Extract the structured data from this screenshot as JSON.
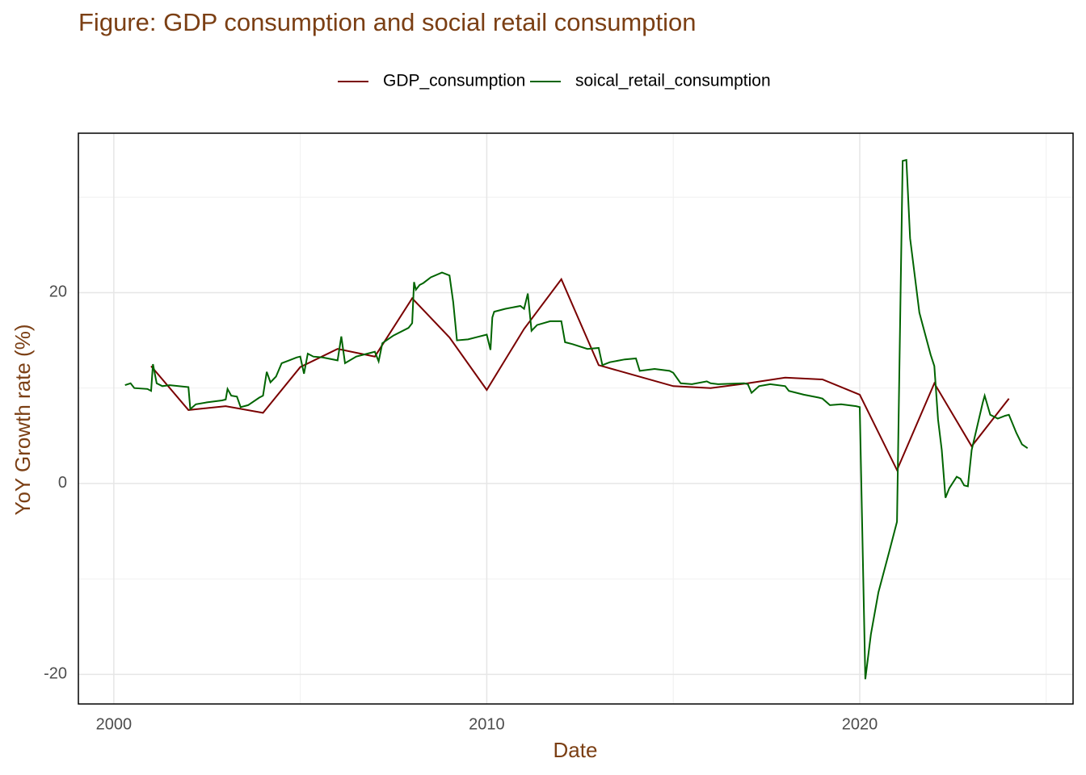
{
  "chart_data": {
    "type": "line",
    "title": "Figure: GDP consumption and social retail consumption",
    "x_label": "Date",
    "y_label": "YoY Growth rate (%)",
    "xlim": [
      1999.05,
      2025.72
    ],
    "ylim": [
      -23.1,
      36.7
    ],
    "xticks": [
      2000,
      2010,
      2020
    ],
    "yticks": [
      -20,
      0,
      20
    ],
    "grid": true,
    "legend": "top",
    "series": [
      {
        "name": "GDP_consumption",
        "color": "#7a0000",
        "x": [
          2001,
          2002,
          2003,
          2004,
          2005,
          2006,
          2007,
          2008,
          2009,
          2010,
          2011,
          2012,
          2013,
          2014,
          2015,
          2016,
          2017,
          2018,
          2019,
          2020,
          2021,
          2022,
          2023,
          2024
        ],
        "values": [
          12.3,
          7.7,
          8.1,
          7.4,
          12.2,
          14.1,
          13.3,
          19.4,
          15.3,
          9.8,
          16.2,
          21.4,
          12.4,
          11.3,
          10.2,
          10.0,
          10.5,
          11.1,
          10.9,
          9.3,
          1.4,
          10.5,
          3.9,
          8.9
        ]
      },
      {
        "name": "soical_retail_consumption",
        "color": "#006400",
        "x": [
          2000.3,
          2000.45,
          2000.55,
          2000.9,
          2001.0,
          2001.05,
          2001.15,
          2001.3,
          2001.5,
          2002.0,
          2002.05,
          2002.2,
          2002.5,
          2002.9,
          2003.0,
          2003.05,
          2003.15,
          2003.3,
          2003.4,
          2003.6,
          2003.9,
          2004.0,
          2004.1,
          2004.2,
          2004.35,
          2004.5,
          2004.7,
          2004.9,
          2005.0,
          2005.1,
          2005.2,
          2005.35,
          2005.6,
          2006.0,
          2006.1,
          2006.2,
          2006.5,
          2006.9,
          2007.0,
          2007.1,
          2007.2,
          2007.5,
          2007.9,
          2008.0,
          2008.05,
          2008.1,
          2008.2,
          2008.3,
          2008.5,
          2008.8,
          2009.0,
          2009.1,
          2009.2,
          2009.5,
          2009.8,
          2010.0,
          2010.1,
          2010.15,
          2010.2,
          2010.5,
          2010.9,
          2011.0,
          2011.1,
          2011.2,
          2011.35,
          2011.7,
          2012.0,
          2012.1,
          2012.3,
          2012.7,
          2013.0,
          2013.1,
          2013.3,
          2013.7,
          2014.0,
          2014.1,
          2014.5,
          2014.9,
          2015.0,
          2015.2,
          2015.5,
          2015.9,
          2016.0,
          2016.2,
          2016.9,
          2017.0,
          2017.1,
          2017.3,
          2017.6,
          2018.0,
          2018.1,
          2018.5,
          2018.9,
          2019.0,
          2019.2,
          2019.5,
          2019.9,
          2020.0,
          2020.15,
          2020.3,
          2020.5,
          2020.8,
          2021.0,
          2021.15,
          2021.25,
          2021.35,
          2021.6,
          2021.9,
          2022.0,
          2022.1,
          2022.2,
          2022.3,
          2022.4,
          2022.6,
          2022.7,
          2022.8,
          2022.9,
          2023.0,
          2023.3,
          2023.35,
          2023.5,
          2023.7,
          2023.9,
          2024.0,
          2024.2,
          2024.35,
          2024.5
        ],
        "values": [
          10.3,
          10.5,
          10.0,
          9.9,
          9.7,
          12.5,
          10.5,
          10.2,
          10.3,
          10.1,
          7.8,
          8.3,
          8.5,
          8.7,
          8.8,
          9.9,
          9.2,
          9.1,
          8.0,
          8.2,
          9.0,
          9.2,
          11.7,
          10.6,
          11.2,
          12.6,
          12.9,
          13.2,
          13.3,
          11.5,
          13.6,
          13.3,
          13.2,
          12.9,
          15.4,
          12.6,
          13.3,
          13.7,
          13.8,
          12.8,
          14.7,
          15.5,
          16.3,
          16.8,
          21.1,
          20.3,
          20.8,
          21.0,
          21.6,
          22.1,
          21.8,
          19.0,
          15.0,
          15.1,
          15.4,
          15.6,
          14.0,
          17.4,
          18.0,
          18.3,
          18.6,
          18.3,
          19.9,
          16.0,
          16.6,
          17.0,
          17.0,
          14.8,
          14.6,
          14.1,
          14.2,
          12.4,
          12.7,
          13.0,
          13.1,
          11.8,
          12.0,
          11.8,
          11.6,
          10.5,
          10.4,
          10.7,
          10.5,
          10.4,
          10.5,
          10.4,
          9.5,
          10.2,
          10.4,
          10.2,
          9.7,
          9.3,
          9.0,
          8.9,
          8.2,
          8.3,
          8.1,
          8.0,
          -20.5,
          -15.8,
          -11.4,
          -7.0,
          -4.0,
          33.8,
          33.9,
          25.7,
          17.9,
          13.5,
          12.3,
          6.7,
          3.5,
          -1.5,
          -0.5,
          0.7,
          0.5,
          -0.2,
          -0.3,
          3.5,
          8.5,
          9.2,
          7.2,
          6.8,
          7.1,
          7.2,
          5.3,
          4.1,
          3.7
        ]
      }
    ]
  }
}
